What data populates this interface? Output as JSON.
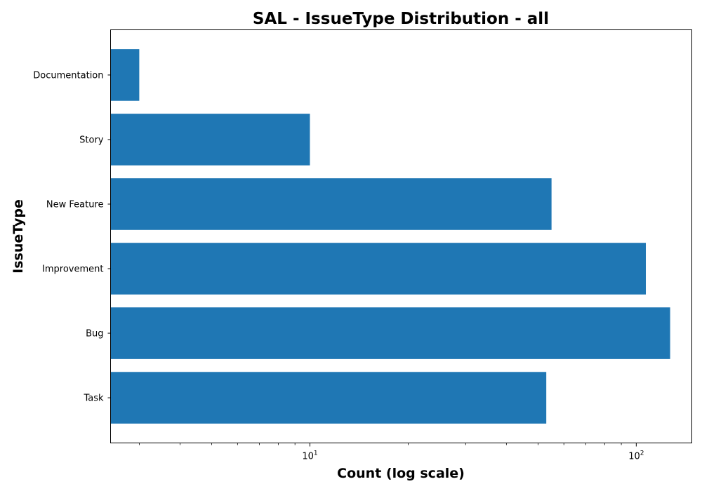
{
  "chart_data": {
    "type": "bar",
    "orientation": "horizontal",
    "title": "SAL - IssueType Distribution - all",
    "xlabel": "Count (log scale)",
    "ylabel": "IssueType",
    "x_scale": "log",
    "xlim": [
      2.45,
      148
    ],
    "categories": [
      "Task",
      "Bug",
      "Improvement",
      "New Feature",
      "Story",
      "Documentation"
    ],
    "values": [
      53,
      127,
      107,
      55,
      10,
      3
    ],
    "x_ticks": [
      {
        "value": 10,
        "base": "10",
        "exponent": "1"
      },
      {
        "value": 100,
        "base": "10",
        "exponent": "2"
      }
    ],
    "bar_color": "#1f77b4",
    "grid": false,
    "legend": "none"
  }
}
